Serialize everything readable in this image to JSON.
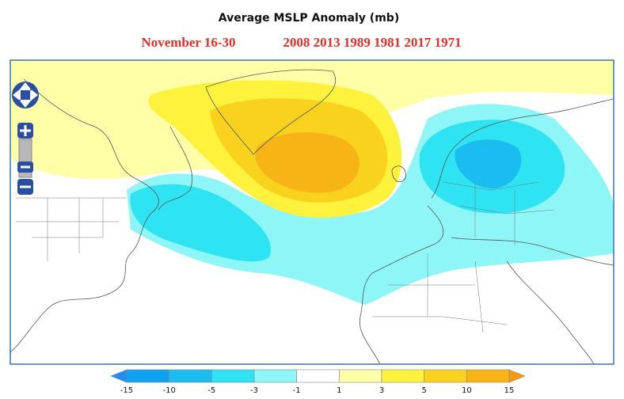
{
  "title": "Average MSLP Anomaly (mb)",
  "period": "November 16-30",
  "years": "2008 2013 1989 1981 2017 1971",
  "colorbar": {
    "ticks": [
      -15,
      -10,
      -5,
      -3,
      -1,
      1,
      3,
      5,
      10,
      15
    ],
    "colors": [
      "#1f8ff0",
      "#0ea3f2",
      "#1bbdf0",
      "#2ee3f2",
      "#8ef6f6",
      "#ffffff",
      "#ffffa8",
      "#fff23c",
      "#f9d21e",
      "#f8b315",
      "#f79a10"
    ]
  }
}
